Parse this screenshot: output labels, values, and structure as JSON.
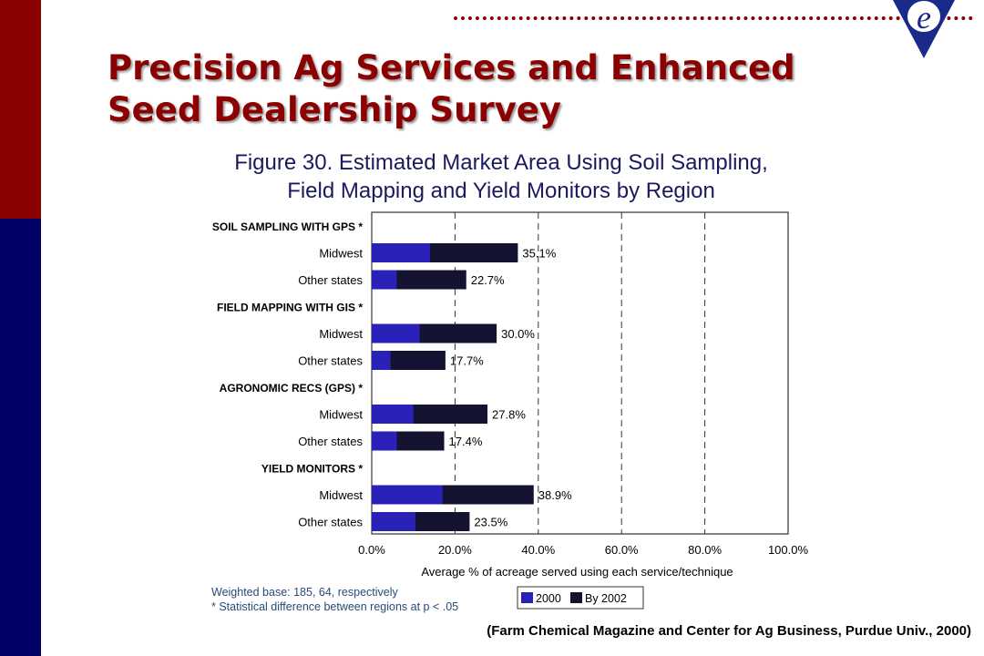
{
  "slide": {
    "title_line1": "Precision Ag Services and Enhanced",
    "title_line2": "Seed Dealership Survey",
    "citation": "(Farm Chemical Magazine and Center for Ag Business, Purdue Univ., 2000)",
    "logo_letter": "e"
  },
  "colors": {
    "sidebar_top": "#8b0000",
    "sidebar_bottom": "#000066",
    "title": "#8b0000",
    "series_2000": "#2a22b8",
    "series_2002": "#141432"
  },
  "chart_data": {
    "type": "bar",
    "orientation": "horizontal",
    "title_line1": "Figure 30.  Estimated Market Area Using Soil Sampling,",
    "title_line2": "Field Mapping and Yield Monitors by Region",
    "xlabel": "Average % of acreage served using each service/technique",
    "xlim": [
      0,
      100
    ],
    "xticks": [
      "0.0%",
      "20.0%",
      "40.0%",
      "60.0%",
      "80.0%",
      "100.0%"
    ],
    "legend": [
      "2000",
      "By 2002"
    ],
    "legend_position": "bottom-right",
    "notes": [
      "Weighted base:  185, 64, respectively",
      "* Statistical difference between regions at p < .05"
    ],
    "groups": [
      {
        "label": "SOIL SAMPLING WITH GPS *",
        "rows": [
          {
            "label": "Midwest",
            "v2000": 14,
            "v2002": 35.1,
            "data_label": "35.1%"
          },
          {
            "label": "Other states",
            "v2000": 6,
            "v2002": 22.7,
            "data_label": "22.7%"
          }
        ]
      },
      {
        "label": "FIELD MAPPING WITH GIS *",
        "rows": [
          {
            "label": "Midwest",
            "v2000": 11.5,
            "v2002": 30.0,
            "data_label": "30.0%"
          },
          {
            "label": "Other states",
            "v2000": 4.5,
            "v2002": 17.7,
            "data_label": "17.7%"
          }
        ]
      },
      {
        "label": "AGRONOMIC RECS (GPS) *",
        "rows": [
          {
            "label": "Midwest",
            "v2000": 10,
            "v2002": 27.8,
            "data_label": "27.8%"
          },
          {
            "label": "Other states",
            "v2000": 6,
            "v2002": 17.4,
            "data_label": "17.4%"
          }
        ]
      },
      {
        "label": "YIELD MONITORS *",
        "rows": [
          {
            "label": "Midwest",
            "v2000": 17,
            "v2002": 38.9,
            "data_label": "38.9%"
          },
          {
            "label": "Other states",
            "v2000": 10.5,
            "v2002": 23.5,
            "data_label": "23.5%"
          }
        ]
      }
    ]
  }
}
